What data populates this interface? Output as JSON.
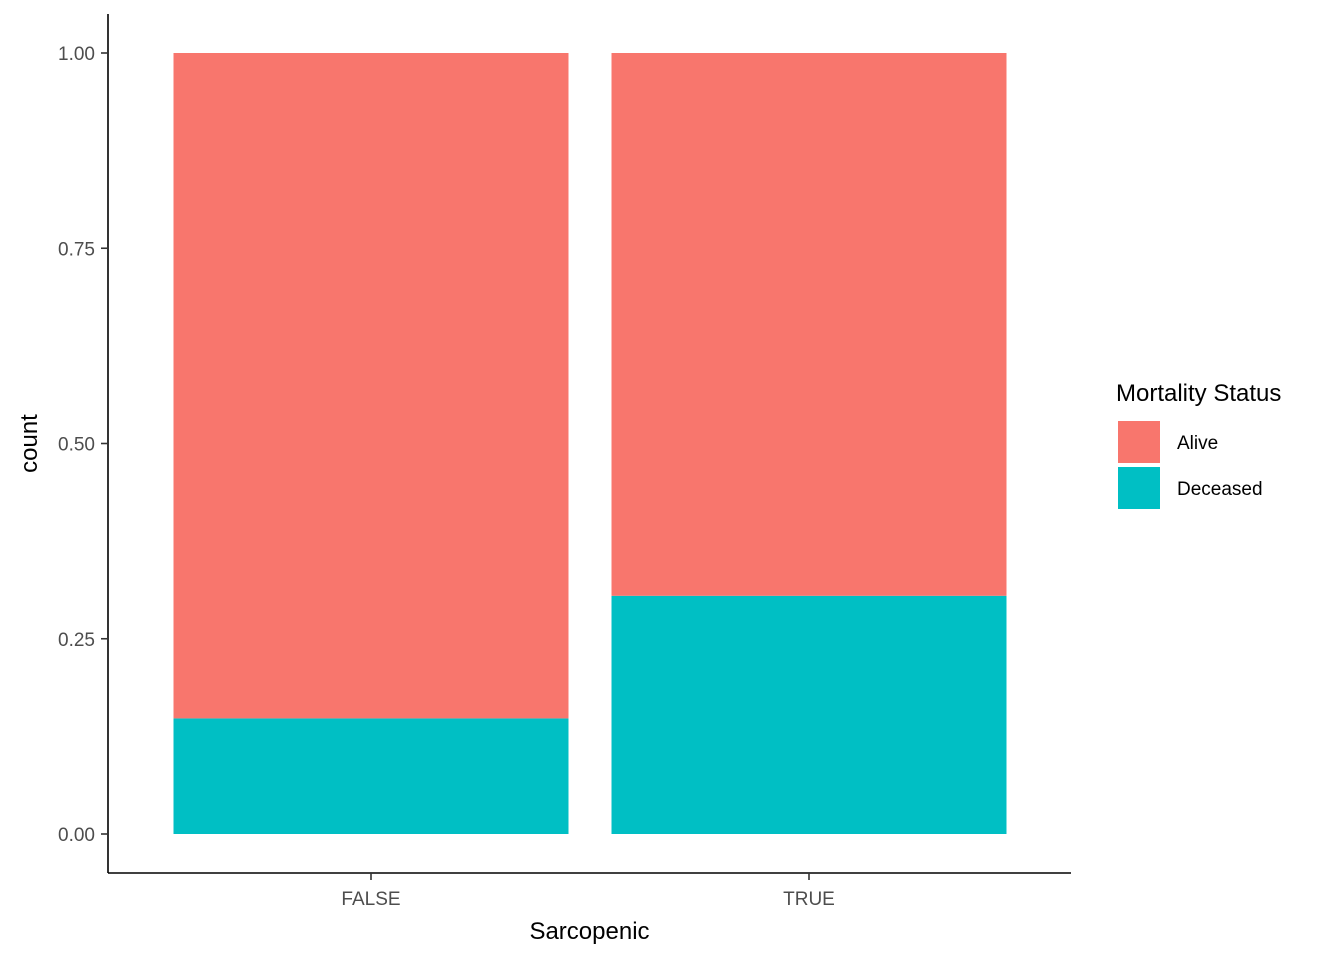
{
  "chart_data": {
    "type": "bar",
    "stacked": true,
    "xlabel": "Sarcopenic",
    "ylabel": "count",
    "categories": [
      "FALSE",
      "TRUE"
    ],
    "ylim": [
      0,
      1
    ],
    "yticks": [
      "0.00",
      "0.25",
      "0.50",
      "0.75",
      "1.00"
    ],
    "series": [
      {
        "name": "Deceased",
        "color": "#00BFC4",
        "values": [
          0.148,
          0.305
        ]
      },
      {
        "name": "Alive",
        "color": "#F8766D",
        "values": [
          0.852,
          0.695
        ]
      }
    ],
    "legend": {
      "title": "Mortality Status",
      "position": "right",
      "items": [
        {
          "label": "Alive",
          "color": "#F8766D"
        },
        {
          "label": "Deceased",
          "color": "#00BFC4"
        }
      ]
    },
    "grid": false
  }
}
